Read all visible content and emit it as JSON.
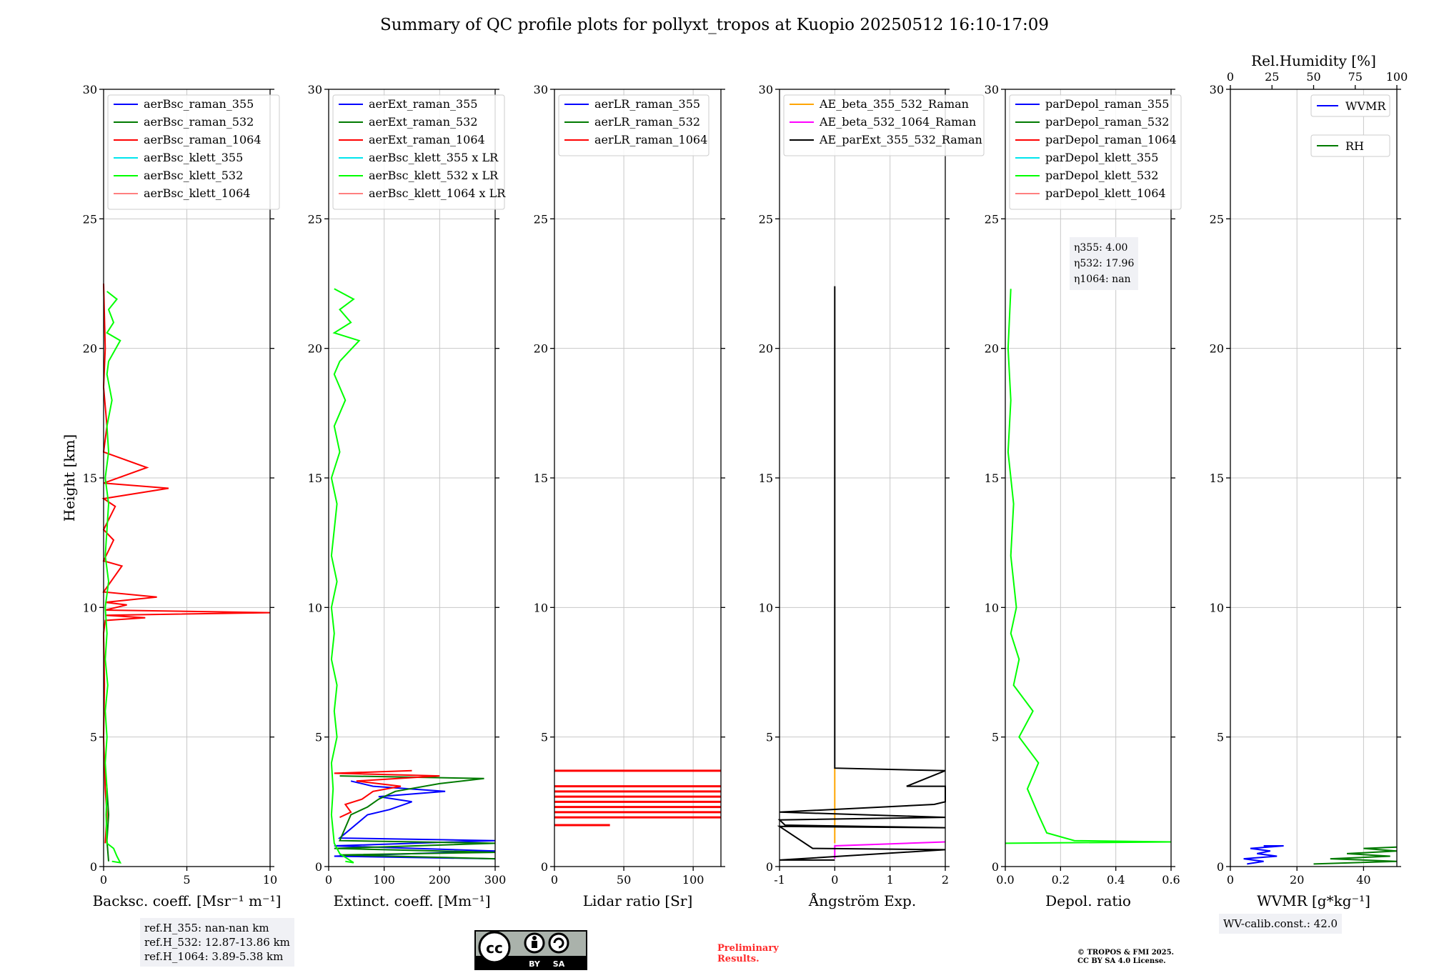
{
  "title": "Summary of QC profile plots for pollyxt_tropos at Kuopio 20250512 16:10-17:09",
  "colors": {
    "blue": "#0000ff",
    "darkgreen": "#007a00",
    "red": "#ff0000",
    "cyan": "#00e5ee",
    "lime": "#00ff00",
    "salmon": "#ff8080",
    "orange": "#ffa500",
    "magenta": "#ff00ff",
    "black": "#000000",
    "grid": "#c8c8c8"
  },
  "ylabel": "Height [km]",
  "notes": {
    "refH": [
      "ref.H_355: nan-nan km",
      "ref.H_532: 12.87-13.86 km",
      "ref.H_1064: 3.89-5.38 km"
    ],
    "eta": [
      "η355: 4.00",
      "η532: 17.96",
      "η1064: nan"
    ],
    "wvcalib": "WV-calib.const.: 42.0",
    "preliminary": [
      "Preliminary",
      "Results."
    ],
    "copyright": [
      "© TROPOS & FMI 2025.",
      "CC BY SA 4.0 License."
    ],
    "cc_logo": "CC BY SA"
  },
  "chart_data": [
    {
      "type": "line",
      "xlabel": "Backsc. coeff. [Msr⁻¹ m⁻¹]",
      "ylabel": "Height [km]",
      "xlim": [
        0,
        10
      ],
      "ylim": [
        0,
        30
      ],
      "xticks": [
        0,
        5,
        10
      ],
      "yticks": [
        0,
        5,
        10,
        15,
        20,
        25,
        30
      ],
      "legend": "top-left",
      "series": [
        {
          "name": "aerBsc_raman_355",
          "color": "blue",
          "points": []
        },
        {
          "name": "aerBsc_raman_532",
          "color": "darkgreen",
          "points": [
            [
              0.3,
              0.2
            ],
            [
              0.2,
              1.0
            ],
            [
              0.3,
              2.0
            ],
            [
              0.2,
              3.0
            ],
            [
              0.1,
              3.6
            ]
          ]
        },
        {
          "name": "aerBsc_raman_1064",
          "color": "red",
          "points": [
            [
              0.1,
              0.9
            ],
            [
              0.2,
              2.0
            ],
            [
              0.1,
              3.0
            ],
            [
              0.0,
              5.0
            ],
            [
              0.05,
              7.0
            ],
            [
              0.0,
              9.0
            ],
            [
              0.1,
              9.5
            ],
            [
              2.5,
              9.6
            ],
            [
              0.1,
              9.7
            ],
            [
              10.0,
              9.8
            ],
            [
              0.1,
              9.9
            ],
            [
              1.4,
              10.1
            ],
            [
              0.1,
              10.2
            ],
            [
              3.2,
              10.4
            ],
            [
              0.0,
              10.6
            ],
            [
              1.1,
              11.6
            ],
            [
              0.0,
              11.8
            ],
            [
              0.6,
              12.6
            ],
            [
              0.0,
              13.0
            ],
            [
              0.7,
              13.9
            ],
            [
              0.0,
              14.2
            ],
            [
              3.9,
              14.6
            ],
            [
              0.0,
              14.8
            ],
            [
              2.6,
              15.4
            ],
            [
              0.0,
              16.0
            ],
            [
              0.2,
              17.0
            ],
            [
              0.0,
              18.5
            ],
            [
              0.1,
              20.0
            ],
            [
              0.0,
              22.5
            ]
          ]
        },
        {
          "name": "aerBsc_klett_355",
          "color": "cyan",
          "points": []
        },
        {
          "name": "aerBsc_klett_532",
          "color": "lime",
          "points": [
            [
              0.5,
              0.2
            ],
            [
              1.0,
              0.15
            ],
            [
              0.8,
              0.4
            ],
            [
              0.6,
              0.7
            ],
            [
              0.2,
              0.9
            ],
            [
              0.15,
              2.0
            ],
            [
              0.2,
              3.0
            ],
            [
              0.1,
              4.0
            ],
            [
              0.2,
              5.0
            ],
            [
              0.1,
              6.0
            ],
            [
              0.25,
              7.0
            ],
            [
              0.1,
              8.0
            ],
            [
              0.2,
              9.0
            ],
            [
              0.1,
              10.0
            ],
            [
              0.3,
              11.0
            ],
            [
              0.1,
              12.0
            ],
            [
              0.2,
              13.0
            ],
            [
              0.3,
              14.0
            ],
            [
              0.1,
              15.0
            ],
            [
              0.3,
              16.0
            ],
            [
              0.2,
              17.0
            ],
            [
              0.5,
              18.0
            ],
            [
              0.2,
              19.0
            ],
            [
              0.3,
              19.5
            ],
            [
              1.0,
              20.3
            ],
            [
              0.2,
              20.6
            ],
            [
              0.6,
              21.0
            ],
            [
              0.3,
              21.5
            ],
            [
              0.8,
              21.9
            ],
            [
              0.2,
              22.2
            ]
          ]
        },
        {
          "name": "aerBsc_klett_1064",
          "color": "salmon",
          "points": []
        }
      ]
    },
    {
      "type": "line",
      "xlabel": "Extinct. coeff. [Mm⁻¹]",
      "xlim": [
        0,
        300
      ],
      "ylim": [
        0,
        30
      ],
      "xticks": [
        0,
        100,
        200,
        300
      ],
      "yticks": [
        0,
        5,
        10,
        15,
        20,
        25,
        30
      ],
      "legend": "top-left",
      "series": [
        {
          "name": "aerExt_raman_355",
          "color": "blue",
          "points": [
            [
              300,
              0.3
            ],
            [
              10,
              0.4
            ],
            [
              300,
              0.6
            ],
            [
              10,
              0.8
            ],
            [
              300,
              1.0
            ],
            [
              20,
              1.1
            ],
            [
              70,
              2.0
            ],
            [
              110,
              2.2
            ],
            [
              150,
              2.5
            ],
            [
              90,
              2.7
            ],
            [
              210,
              2.9
            ],
            [
              80,
              3.1
            ],
            [
              40,
              3.3
            ]
          ]
        },
        {
          "name": "aerExt_raman_532",
          "color": "darkgreen",
          "points": [
            [
              300,
              0.3
            ],
            [
              20,
              0.45
            ],
            [
              300,
              0.55
            ],
            [
              10,
              0.7
            ],
            [
              300,
              0.9
            ],
            [
              20,
              1.0
            ],
            [
              40,
              2.0
            ],
            [
              70,
              2.3
            ],
            [
              90,
              2.6
            ],
            [
              120,
              2.9
            ],
            [
              200,
              3.2
            ],
            [
              280,
              3.4
            ],
            [
              20,
              3.5
            ]
          ]
        },
        {
          "name": "aerExt_raman_1064",
          "color": "red",
          "points": [
            [
              20,
              1.9
            ],
            [
              40,
              2.1
            ],
            [
              30,
              2.4
            ],
            [
              60,
              2.6
            ],
            [
              80,
              2.9
            ],
            [
              130,
              3.1
            ],
            [
              50,
              3.3
            ],
            [
              200,
              3.5
            ],
            [
              10,
              3.6
            ],
            [
              150,
              3.7
            ]
          ]
        },
        {
          "name": "aerBsc_klett_355 x LR",
          "color": "cyan",
          "points": []
        },
        {
          "name": "aerBsc_klett_532 x LR",
          "color": "lime",
          "points": [
            [
              30,
              0.2
            ],
            [
              45,
              0.15
            ],
            [
              20,
              0.5
            ],
            [
              10,
              0.9
            ],
            [
              5,
              2.0
            ],
            [
              8,
              3.0
            ],
            [
              5,
              4.0
            ],
            [
              15,
              5.0
            ],
            [
              10,
              6.0
            ],
            [
              15,
              7.0
            ],
            [
              5,
              8.0
            ],
            [
              10,
              9.0
            ],
            [
              5,
              10.0
            ],
            [
              15,
              11.0
            ],
            [
              5,
              12.0
            ],
            [
              10,
              13.0
            ],
            [
              15,
              14.0
            ],
            [
              5,
              15.0
            ],
            [
              20,
              16.0
            ],
            [
              10,
              17.0
            ],
            [
              30,
              18.0
            ],
            [
              10,
              19.0
            ],
            [
              20,
              19.5
            ],
            [
              55,
              20.3
            ],
            [
              10,
              20.6
            ],
            [
              40,
              21.0
            ],
            [
              20,
              21.5
            ],
            [
              45,
              21.9
            ],
            [
              10,
              22.3
            ]
          ]
        },
        {
          "name": "aerBsc_klett_1064 x LR",
          "color": "salmon",
          "points": []
        }
      ]
    },
    {
      "type": "line",
      "xlabel": "Lidar ratio [Sr]",
      "xlim": [
        0,
        120
      ],
      "ylim": [
        0,
        30
      ],
      "xticks": [
        0,
        50,
        100
      ],
      "yticks": [
        0,
        5,
        10,
        15,
        20,
        25,
        30
      ],
      "legend": "top-left",
      "series": [
        {
          "name": "aerLR_raman_355",
          "color": "blue",
          "points": []
        },
        {
          "name": "aerLR_raman_532",
          "color": "darkgreen",
          "points": []
        },
        {
          "name": "aerLR_raman_1064",
          "color": "red",
          "segments": [
            [
              0,
              120,
              3.7
            ],
            [
              0,
              120,
              3.1
            ],
            [
              0,
              120,
              2.9
            ],
            [
              0,
              120,
              2.7
            ],
            [
              0,
              120,
              2.5
            ],
            [
              0,
              120,
              2.3
            ],
            [
              0,
              120,
              2.1
            ],
            [
              0,
              120,
              1.9
            ],
            [
              0,
              40,
              1.6
            ]
          ]
        }
      ]
    },
    {
      "type": "line",
      "xlabel": "Ångström Exp.",
      "xlim": [
        -1,
        2
      ],
      "ylim": [
        0,
        30
      ],
      "xticks": [
        -1,
        0,
        1,
        2
      ],
      "yticks": [
        0,
        5,
        10,
        15,
        20,
        25,
        30
      ],
      "legend": "top-left",
      "series": [
        {
          "name": "AE_beta_355_532_Raman",
          "color": "orange",
          "points": [
            [
              0,
              0.9
            ],
            [
              0,
              3.8
            ]
          ]
        },
        {
          "name": "AE_beta_532_1064_Raman",
          "color": "magenta",
          "points": [
            [
              0,
              0.3
            ],
            [
              0,
              0.8
            ],
            [
              2,
              0.95
            ]
          ]
        },
        {
          "name": "AE_parExt_355_532_Raman",
          "color": "black",
          "points": [
            [
              0,
              22.4
            ],
            [
              0,
              3.8
            ],
            [
              2,
              3.7
            ],
            [
              1.3,
              3.1
            ],
            [
              2,
              3.1
            ],
            [
              2,
              2.6
            ],
            [
              2,
              2.5
            ],
            [
              1.8,
              2.4
            ],
            [
              -1,
              2.1
            ],
            [
              2,
              1.9
            ],
            [
              -1,
              1.8
            ],
            [
              -0.9,
              1.6
            ],
            [
              2,
              1.5
            ],
            [
              -1,
              1.55
            ],
            [
              -0.4,
              0.7
            ],
            [
              2,
              0.65
            ],
            [
              -1,
              0.25
            ],
            [
              0,
              0.25
            ]
          ]
        }
      ]
    },
    {
      "type": "line",
      "xlabel": "Depol. ratio",
      "xlim": [
        0,
        0.6
      ],
      "ylim": [
        0,
        30
      ],
      "xticks": [
        0.0,
        0.2,
        0.4,
        0.6
      ],
      "yticks": [
        0,
        5,
        10,
        15,
        20,
        25,
        30
      ],
      "legend": "top-left",
      "series": [
        {
          "name": "parDepol_raman_355",
          "color": "blue",
          "points": []
        },
        {
          "name": "parDepol_raman_532",
          "color": "darkgreen",
          "points": []
        },
        {
          "name": "parDepol_raman_1064",
          "color": "red",
          "points": []
        },
        {
          "name": "parDepol_klett_355",
          "color": "cyan",
          "points": []
        },
        {
          "name": "parDepol_klett_532",
          "color": "lime",
          "points": [
            [
              0.0,
              0.9
            ],
            [
              0.6,
              0.95
            ],
            [
              0.25,
              1.0
            ],
            [
              0.15,
              1.3
            ],
            [
              0.12,
              2.0
            ],
            [
              0.08,
              3.0
            ],
            [
              0.12,
              4.0
            ],
            [
              0.05,
              5.0
            ],
            [
              0.1,
              6.0
            ],
            [
              0.03,
              7.0
            ],
            [
              0.05,
              8.0
            ],
            [
              0.02,
              9.0
            ],
            [
              0.04,
              10.0
            ],
            [
              0.02,
              12.0
            ],
            [
              0.03,
              14.0
            ],
            [
              0.01,
              16.0
            ],
            [
              0.02,
              18.0
            ],
            [
              0.01,
              20.0
            ],
            [
              0.02,
              22.3
            ]
          ]
        },
        {
          "name": "parDepol_klett_1064",
          "color": "salmon",
          "points": []
        }
      ]
    },
    {
      "type": "line",
      "xlabel": "WVMR [g*kg⁻¹]",
      "x2label": "Rel.Humidity [%]",
      "xlim": [
        0,
        50
      ],
      "x2lim": [
        0,
        100
      ],
      "ylim": [
        0,
        30
      ],
      "xticks": [
        0,
        20,
        40
      ],
      "x2ticks": [
        0,
        25,
        50,
        75,
        100
      ],
      "yticks": [
        0,
        5,
        10,
        15,
        20,
        25,
        30
      ],
      "legend": "top-right",
      "series": [
        {
          "name": "WVMR",
          "color": "blue",
          "points": [
            [
              5,
              0.1
            ],
            [
              10,
              0.2
            ],
            [
              4,
              0.3
            ],
            [
              14,
              0.4
            ],
            [
              8,
              0.5
            ],
            [
              12,
              0.6
            ],
            [
              6,
              0.7
            ],
            [
              16,
              0.8
            ],
            [
              10,
              0.8
            ]
          ]
        },
        {
          "name": "RH",
          "color": "darkgreen",
          "points": [
            [
              25,
              0.1
            ],
            [
              50,
              0.2
            ],
            [
              30,
              0.3
            ],
            [
              48,
              0.4
            ],
            [
              35,
              0.5
            ],
            [
              50,
              0.6
            ],
            [
              40,
              0.7
            ],
            [
              50,
              0.75
            ]
          ]
        }
      ]
    }
  ]
}
